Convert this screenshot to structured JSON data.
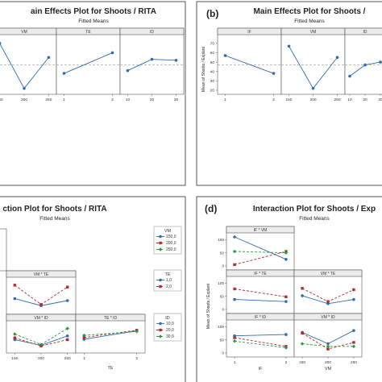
{
  "panels": {
    "a": {
      "title": "ain Effects Plot for Shoots / RITA",
      "subtitle": "Fitted Means",
      "mean_line": 47
    },
    "b": {
      "label": "(b)",
      "title": "Main Effects Plot for Shoots /",
      "subtitle": "Fitted Means",
      "ylabel": "Mean of Shoots / Explant",
      "mean_line": 47
    },
    "c": {
      "title": "ction Plot for Shoots / RITA",
      "subtitle": "Fitted Means"
    },
    "d": {
      "label": "(d)",
      "title": "Interaction Plot for Shoots / Exp",
      "subtitle": "Fitted Means",
      "ylabel": "Mean of Shoots / Explant"
    }
  },
  "chart_data": [
    {
      "type": "line",
      "panel": "a",
      "title": "ain Effects Plot for Shoots / RITA",
      "subtitle": "Fitted Means",
      "ylim": [
        20,
        75
      ],
      "facets": [
        {
          "name": "VM",
          "x": [
            "150",
            "200",
            "250"
          ],
          "values": [
            70,
            22,
            55
          ]
        },
        {
          "name": "TE",
          "x": [
            "1",
            "2"
          ],
          "values": [
            38,
            60
          ]
        },
        {
          "name": "ID",
          "x": [
            "10",
            "20",
            "30"
          ],
          "values": [
            41,
            53,
            52
          ]
        }
      ],
      "color": "#2e6db5"
    },
    {
      "type": "line",
      "panel": "b",
      "title": "Main Effects Plot for Shoots /",
      "subtitle": "Fitted Means",
      "ylabel": "Mean of Shoots / Explant",
      "ylim": [
        20,
        75
      ],
      "yticks": [
        20,
        30,
        40,
        50,
        60,
        70
      ],
      "facets": [
        {
          "name": "IF",
          "x": [
            "1",
            "2"
          ],
          "values": [
            57,
            38
          ]
        },
        {
          "name": "VM",
          "x": [
            "150",
            "200",
            "250"
          ],
          "values": [
            67,
            22,
            55
          ]
        },
        {
          "name": "ID",
          "x": [
            "10",
            "20",
            "30"
          ],
          "values": [
            35,
            47,
            50
          ]
        }
      ],
      "color": "#2e6db5"
    },
    {
      "type": "line",
      "panel": "c",
      "title": "ction Plot for Shoots / RITA",
      "subtitle": "Fitted Means",
      "facets": [
        {
          "name": "VM * TE",
          "x": [
            "150",
            "200",
            "250"
          ],
          "series": [
            {
              "name": "1,0",
              "values": [
                40,
                22,
                35
              ]
            },
            {
              "name": "2,0",
              "values": [
                75,
                25,
                70
              ]
            }
          ]
        },
        {
          "name": "VM * ID",
          "x": [
            "150",
            "200",
            "250"
          ],
          "series": [
            {
              "name": "10,0",
              "values": [
                25,
                10,
                35
              ]
            },
            {
              "name": "20,0",
              "values": [
                30,
                8,
                25
              ]
            },
            {
              "name": "30,0",
              "values": [
                40,
                12,
                55
              ]
            }
          ]
        },
        {
          "name": "TE * ID",
          "x": [
            "1",
            "2"
          ],
          "series": [
            {
              "name": "10,0",
              "values": [
                32,
                60
              ]
            },
            {
              "name": "20,0",
              "values": [
                38,
                62
              ]
            },
            {
              "name": "30,0",
              "values": [
                45,
                58
              ]
            }
          ]
        }
      ],
      "legends": [
        {
          "title": "VM",
          "entries": [
            "150,0",
            "200,0",
            "250,0"
          ]
        },
        {
          "title": "TE",
          "entries": [
            "1,0",
            "2,0"
          ]
        },
        {
          "title": "ID",
          "entries": [
            "10,0",
            "20,0",
            "30,0"
          ]
        }
      ],
      "xlabel": "TE"
    },
    {
      "type": "line",
      "panel": "d",
      "title": "Interaction Plot for Shoots / Exp",
      "subtitle": "Fitted Means",
      "ylabel": "Mean of Shoots / Explant",
      "ylim": [
        0,
        110
      ],
      "yticks": [
        0,
        50,
        100
      ],
      "facets": [
        {
          "name": "IF * VM",
          "x": [
            "1",
            "2"
          ],
          "series": [
            {
              "name": "150",
              "values": [
                110,
                25
              ]
            },
            {
              "name": "200",
              "values": [
                5,
                55
              ]
            },
            {
              "name": "250",
              "values": [
                55,
                50
              ]
            }
          ]
        },
        {
          "name": "IF * TE",
          "x": [
            "1",
            "2"
          ],
          "series": [
            {
              "name": "1",
              "values": [
                38,
                30
              ]
            },
            {
              "name": "2",
              "values": [
                78,
                48
              ]
            }
          ]
        },
        {
          "name": "IF * ID",
          "x": [
            "1",
            "2"
          ],
          "series": [
            {
              "name": "10",
              "values": [
                65,
                70
              ]
            },
            {
              "name": "20",
              "values": [
                58,
                25
              ]
            },
            {
              "name": "30",
              "values": [
                45,
                20
              ]
            }
          ]
        },
        {
          "name": "VM * TE",
          "x": [
            "150",
            "200",
            "250"
          ],
          "series": [
            {
              "name": "1",
              "values": [
                52,
                22,
                38
              ]
            },
            {
              "name": "2",
              "values": [
                80,
                30,
                75
              ]
            }
          ]
        },
        {
          "name": "VM * ID",
          "x": [
            "150",
            "200",
            "250"
          ],
          "series": [
            {
              "name": "10",
              "values": [
                78,
                35,
                85
              ]
            },
            {
              "name": "20",
              "values": [
                75,
                15,
                40
              ]
            },
            {
              "name": "30",
              "values": [
                35,
                25,
                25
              ]
            }
          ]
        }
      ],
      "xlabels": [
        "IF",
        "VM"
      ],
      "x_ticks_if": [
        "1",
        "2"
      ],
      "x_ticks_vm": [
        "150",
        "200",
        "250"
      ]
    }
  ],
  "colors": {
    "blue": "#2e6db5",
    "red": "#b5292c",
    "green": "#2a9a3a",
    "mean": "#9a9a9a",
    "border": "#555555",
    "panel_bg": "#ffffff",
    "outer_bg": "#d8d8d8"
  }
}
